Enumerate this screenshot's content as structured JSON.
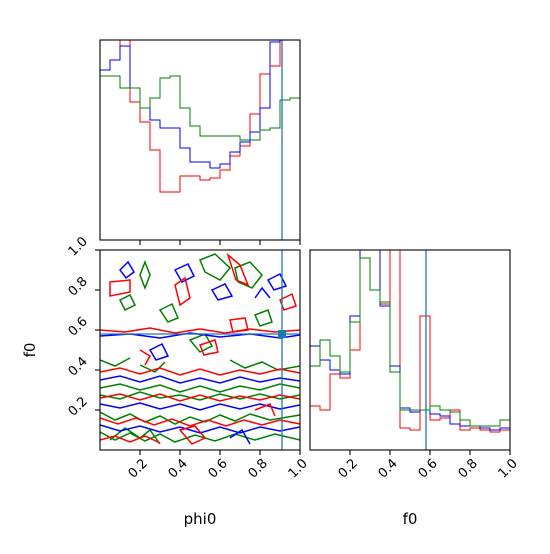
{
  "colors": {
    "red": "#ff0000",
    "blue": "#0000ff",
    "green": "#008000",
    "truth": "#1f77b4"
  },
  "chart_data": [
    {
      "type": "step",
      "panel": "phi0 marginal histogram (top-left)",
      "x_range": [
        0,
        1
      ],
      "bin_edges": [
        0,
        0.05,
        0.1,
        0.15,
        0.2,
        0.25,
        0.3,
        0.35,
        0.4,
        0.45,
        0.5,
        0.55,
        0.6,
        0.65,
        0.7,
        0.75,
        0.8,
        0.85,
        0.9,
        0.95,
        1.0
      ],
      "series": [
        {
          "color": "red",
          "values": [
            0.85,
            0.9,
            1.0,
            0.69,
            0.59,
            0.45,
            0.24,
            0.24,
            0.32,
            0.32,
            0.3,
            0.31,
            0.35,
            0.42,
            0.47,
            0.63,
            0.83,
            0.87,
            1.0,
            1.0
          ]
        },
        {
          "color": "blue",
          "values": [
            0.85,
            0.9,
            0.97,
            0.76,
            0.66,
            0.6,
            0.56,
            0.56,
            0.46,
            0.39,
            0.39,
            0.36,
            0.38,
            0.44,
            0.49,
            0.54,
            0.66,
            0.99,
            1.0,
            1.0
          ]
        },
        {
          "color": "green",
          "values": [
            0.82,
            0.82,
            0.76,
            0.76,
            0.66,
            0.71,
            0.81,
            0.82,
            0.66,
            0.57,
            0.52,
            0.52,
            0.52,
            0.52,
            0.5,
            0.5,
            0.55,
            0.56,
            0.7,
            0.71
          ]
        }
      ],
      "truth_x": 0.91
    },
    {
      "type": "contour",
      "panel": "phi0 vs f0 joint (bottom-left)",
      "xlabel": "phi0",
      "ylabel": "f0",
      "x_range": [
        0,
        1
      ],
      "y_range": [
        0,
        1
      ],
      "xticks": [
        "0.2",
        "0.4",
        "0.6",
        "0.8",
        "1.0"
      ],
      "yticks": [
        "0.2",
        "0.4",
        "0.6",
        "0.8",
        "1.0"
      ],
      "series": [
        "red",
        "blue",
        "green"
      ],
      "truth": {
        "x": 0.91,
        "y": 0.58
      }
    },
    {
      "type": "step",
      "panel": "f0 marginal histogram (bottom-right)",
      "xlabel": "f0",
      "x_range": [
        0,
        1
      ],
      "xticks": [
        "0.2",
        "0.4",
        "0.6",
        "0.8",
        "1.0"
      ],
      "bin_edges": [
        0,
        0.05,
        0.1,
        0.15,
        0.2,
        0.25,
        0.3,
        0.35,
        0.4,
        0.45,
        0.5,
        0.55,
        0.6,
        0.65,
        0.7,
        0.75,
        0.8,
        0.85,
        0.9,
        0.95,
        1.0
      ],
      "series": [
        {
          "color": "red",
          "values": [
            0.22,
            0.2,
            0.38,
            0.36,
            0.5,
            1.0,
            1.0,
            0.73,
            1.0,
            0.11,
            0.1,
            0.67,
            0.15,
            0.16,
            0.2,
            0.1,
            0.11,
            0.1,
            0.09,
            0.1
          ]
        },
        {
          "color": "blue",
          "values": [
            0.52,
            0.45,
            0.4,
            0.38,
            0.67,
            1.0,
            1.0,
            0.72,
            0.42,
            0.21,
            0.19,
            0.2,
            0.18,
            0.17,
            0.13,
            0.12,
            0.12,
            0.11,
            0.1,
            0.11
          ]
        },
        {
          "color": "green",
          "values": [
            0.42,
            0.55,
            0.47,
            0.39,
            0.64,
            0.96,
            0.8,
            0.74,
            0.39,
            0.2,
            0.2,
            0.2,
            0.22,
            0.2,
            0.19,
            0.15,
            0.12,
            0.12,
            0.12,
            0.15
          ]
        }
      ],
      "truth_x": 0.58
    }
  ]
}
